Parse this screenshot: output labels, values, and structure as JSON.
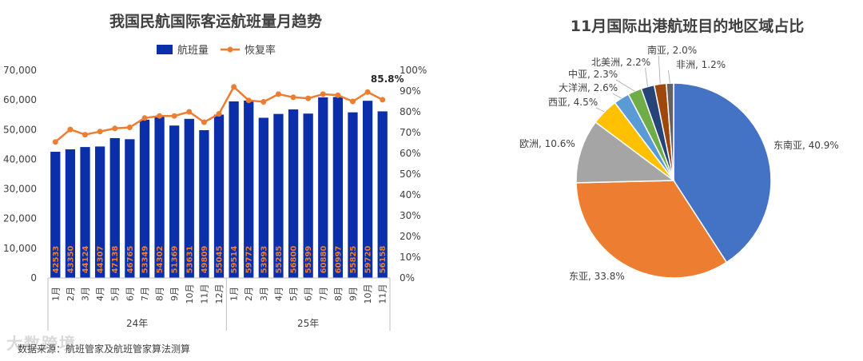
{
  "brand_watermark": "大数跨境",
  "source_note": "数据来源：航班管家及航班管家算法测算",
  "chart_data": [
    {
      "type": "bar",
      "title": "我国民航国际客运航班量月趋势",
      "legend": [
        "航班量",
        "恢复率"
      ],
      "categories": [
        "1月",
        "2月",
        "3月",
        "4月",
        "5月",
        "6月",
        "7月",
        "8月",
        "9月",
        "10月",
        "11月",
        "12月",
        "1月",
        "2月",
        "3月",
        "4月",
        "5月",
        "6月",
        "7月",
        "8月",
        "9月",
        "10月",
        "11月"
      ],
      "groups": [
        {
          "label": "24年",
          "count": 12
        },
        {
          "label": "25年",
          "count": 11
        }
      ],
      "series": [
        {
          "name": "航班量",
          "axis": "left",
          "color": "#0a2fa8",
          "values": [
            42533,
            43350,
            44124,
            44307,
            47138,
            46765,
            53349,
            54302,
            51369,
            53631,
            49809,
            55045,
            59514,
            59772,
            53993,
            55285,
            56800,
            55399,
            60880,
            60997,
            55825,
            59720,
            56158
          ]
        },
        {
          "name": "恢复率",
          "axis": "right",
          "color": "#ed7d31",
          "values": [
            65.5,
            71.5,
            69.0,
            70.5,
            72.0,
            72.5,
            77.0,
            78.0,
            78.0,
            80.0,
            75.0,
            79.0,
            92.0,
            85.5,
            84.8,
            88.5,
            87.0,
            86.5,
            88.5,
            88.0,
            85.0,
            89.5,
            85.8
          ]
        }
      ],
      "last_label": "85.8%",
      "left_axis": {
        "ticks": [
          "0",
          "10,000",
          "20,000",
          "30,000",
          "40,000",
          "50,000",
          "60,000",
          "70,000"
        ],
        "ylim": [
          0,
          70000
        ]
      },
      "right_axis": {
        "ticks": [
          "0%",
          "10%",
          "20%",
          "30%",
          "40%",
          "50%",
          "60%",
          "70%",
          "80%",
          "90%",
          "100%"
        ],
        "ylim": [
          0,
          100
        ]
      }
    },
    {
      "type": "pie",
      "title": "11月国际出港航班目的地区域占比",
      "slices": [
        {
          "label": "东南亚, 40.9%",
          "value": 40.9,
          "color": "#4472c4"
        },
        {
          "label": "东亚, 33.8%",
          "value": 33.8,
          "color": "#ed7d31"
        },
        {
          "label": "欧洲, 10.6%",
          "value": 10.6,
          "color": "#a5a5a5"
        },
        {
          "label": "西亚, 4.5%",
          "value": 4.5,
          "color": "#ffc000"
        },
        {
          "label": "大洋洲, 2.6%",
          "value": 2.6,
          "color": "#5b9bd5"
        },
        {
          "label": "中亚, 2.3%",
          "value": 2.3,
          "color": "#70ad47"
        },
        {
          "label": "北美洲, 2.2%",
          "value": 2.2,
          "color": "#264478"
        },
        {
          "label": "南亚, 2.0%",
          "value": 2.0,
          "color": "#9e480e"
        },
        {
          "label": "非洲, 1.2%",
          "value": 1.2,
          "color": "#636363"
        }
      ]
    }
  ]
}
